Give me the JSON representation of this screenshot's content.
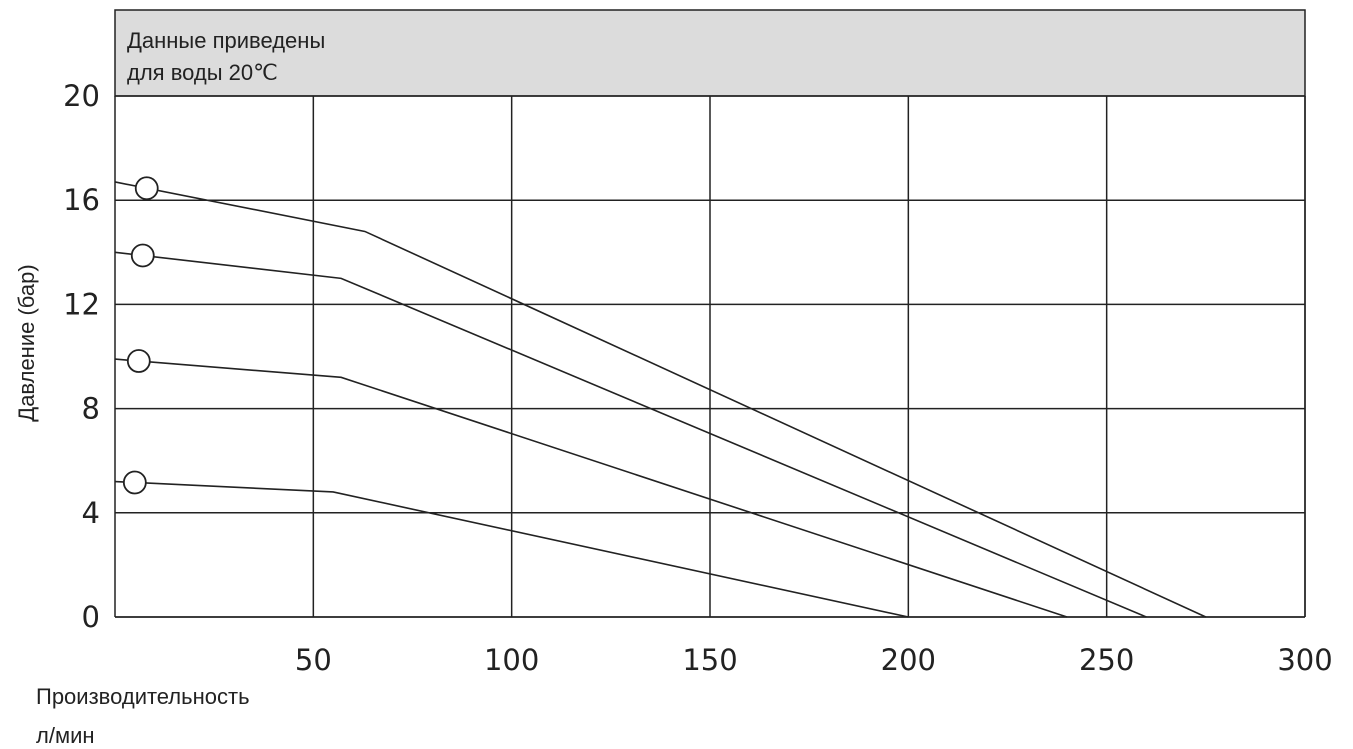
{
  "chart_data": {
    "type": "line",
    "note": {
      "line1": "Данные приведены",
      "line2": "для воды 20℃"
    },
    "xlabel_line1": "Производительность",
    "xlabel_line2": "л/мин",
    "ylabel": "Давление (бар)",
    "xlim": [
      0,
      300
    ],
    "ylim": [
      0,
      20
    ],
    "x_ticks": [
      50,
      100,
      150,
      200,
      250,
      300
    ],
    "y_ticks": [
      0,
      4,
      8,
      12,
      16,
      20
    ],
    "grid": true,
    "series": [
      {
        "points": [
          [
            0,
            16.7
          ],
          [
            63,
            14.8
          ],
          [
            275,
            0
          ]
        ],
        "marker_x": 8
      },
      {
        "points": [
          [
            0,
            14.0
          ],
          [
            57,
            13.0
          ],
          [
            260,
            0
          ]
        ],
        "marker_x": 7
      },
      {
        "points": [
          [
            0,
            9.9
          ],
          [
            57,
            9.2
          ],
          [
            240,
            0
          ]
        ],
        "marker_x": 6
      },
      {
        "points": [
          [
            0,
            5.2
          ],
          [
            55,
            4.8
          ],
          [
            200,
            0
          ]
        ],
        "marker_x": 5
      }
    ]
  }
}
